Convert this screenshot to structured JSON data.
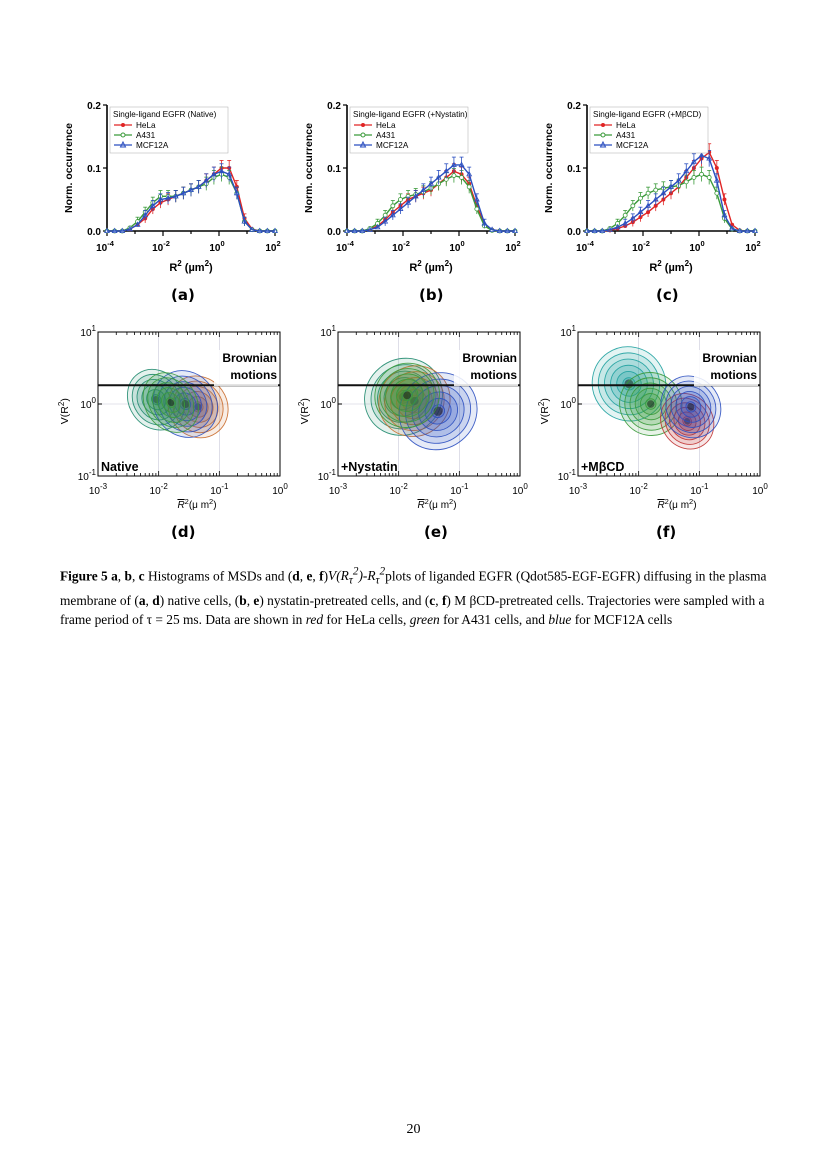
{
  "histograms": [
    {
      "id": "a",
      "sublabel": "(a)",
      "legend_title": "Single-ligand EGFR (Native)",
      "series": [
        {
          "name": "HeLa",
          "color": "#e02424",
          "marker": "circle",
          "values": [
            0,
            0,
            0,
            0.003,
            0.01,
            0.02,
            0.035,
            0.045,
            0.05,
            0.055,
            0.06,
            0.065,
            0.07,
            0.08,
            0.09,
            0.1,
            0.1,
            0.07,
            0.02,
            0.003,
            0,
            0,
            0
          ]
        },
        {
          "name": "A431",
          "color": "#3a9a3a",
          "marker": "circle-open",
          "values": [
            0,
            0,
            0,
            0.005,
            0.015,
            0.03,
            0.045,
            0.055,
            0.055,
            0.055,
            0.06,
            0.065,
            0.07,
            0.075,
            0.085,
            0.09,
            0.085,
            0.06,
            0.015,
            0.002,
            0,
            0,
            0
          ]
        },
        {
          "name": "MCF12A",
          "color": "#2b4fc0",
          "marker": "triangle-open",
          "values": [
            0,
            0,
            0,
            0.003,
            0.01,
            0.025,
            0.04,
            0.05,
            0.052,
            0.055,
            0.06,
            0.065,
            0.07,
            0.08,
            0.09,
            0.095,
            0.09,
            0.06,
            0.015,
            0.002,
            0,
            0,
            0
          ]
        }
      ]
    },
    {
      "id": "b",
      "sublabel": "(b)",
      "legend_title": "Single-ligand EGFR (+Nystatin)",
      "series": [
        {
          "name": "HeLa",
          "color": "#e02424",
          "marker": "circle",
          "values": [
            0,
            0,
            0,
            0.003,
            0.008,
            0.018,
            0.03,
            0.04,
            0.05,
            0.055,
            0.06,
            0.065,
            0.075,
            0.085,
            0.095,
            0.09,
            0.075,
            0.04,
            0.01,
            0.002,
            0,
            0,
            0
          ]
        },
        {
          "name": "A431",
          "color": "#3a9a3a",
          "marker": "circle-open",
          "values": [
            0,
            0,
            0,
            0.004,
            0.012,
            0.025,
            0.04,
            0.05,
            0.055,
            0.058,
            0.062,
            0.068,
            0.075,
            0.082,
            0.088,
            0.085,
            0.07,
            0.035,
            0.008,
            0.001,
            0,
            0,
            0
          ]
        },
        {
          "name": "MCF12A",
          "color": "#2b4fc0",
          "marker": "triangle-open",
          "values": [
            0,
            0,
            0,
            0.002,
            0.006,
            0.015,
            0.025,
            0.035,
            0.045,
            0.055,
            0.065,
            0.075,
            0.085,
            0.095,
            0.105,
            0.105,
            0.09,
            0.05,
            0.012,
            0.002,
            0,
            0,
            0
          ]
        }
      ]
    },
    {
      "id": "c",
      "sublabel": "(c)",
      "legend_title": "Single-ligand EGFR (+MβCD)",
      "series": [
        {
          "name": "HeLa",
          "color": "#e02424",
          "marker": "circle",
          "values": [
            0,
            0,
            0,
            0.001,
            0.004,
            0.008,
            0.014,
            0.022,
            0.03,
            0.04,
            0.05,
            0.06,
            0.07,
            0.085,
            0.1,
            0.115,
            0.125,
            0.1,
            0.05,
            0.01,
            0.001,
            0,
            0
          ]
        },
        {
          "name": "A431",
          "color": "#3a9a3a",
          "marker": "circle-open",
          "values": [
            0,
            0,
            0,
            0.004,
            0.012,
            0.025,
            0.04,
            0.052,
            0.06,
            0.065,
            0.068,
            0.07,
            0.072,
            0.078,
            0.085,
            0.09,
            0.085,
            0.06,
            0.02,
            0.003,
            0,
            0,
            0
          ]
        },
        {
          "name": "MCF12A",
          "color": "#2b4fc0",
          "marker": "triangle-open",
          "values": [
            0,
            0,
            0,
            0.002,
            0.006,
            0.012,
            0.02,
            0.03,
            0.04,
            0.05,
            0.06,
            0.07,
            0.08,
            0.095,
            0.11,
            0.12,
            0.115,
            0.08,
            0.025,
            0.004,
            0,
            0,
            0
          ]
        }
      ]
    }
  ],
  "histogram_axes": {
    "ylabel": "Norm. occurrence",
    "xlabel_base": "R",
    "xlabel_exp": "2",
    "xlabel_unit": "(µm",
    "xlabel_unit_exp": "2",
    "xlabel_close": ")",
    "yticks": [
      "0.0",
      "0.1",
      "0.2"
    ],
    "xtick_bases": [
      "10",
      "10",
      "10",
      "10"
    ],
    "xtick_exps": [
      "-4",
      "-2",
      "0",
      "2"
    ]
  },
  "contours": [
    {
      "id": "d",
      "sublabel": "(d)",
      "condition": "Native"
    },
    {
      "id": "e",
      "sublabel": "(e)",
      "condition": "+Nystatin"
    },
    {
      "id": "f",
      "sublabel": "(f)",
      "condition": "+MβCD"
    }
  ],
  "contour_axes": {
    "ylabel_base": "V(R",
    "ylabel_exp": "2",
    "ylabel_close": ")",
    "xlabel_sym": "R",
    "xlabel_exp": "2",
    "xlabel_unit": "(μ m",
    "xlabel_unit_exp": "2",
    "xlabel_close": ")",
    "brownian_line1": "Brownian",
    "brownian_line2": "motions",
    "ytick_bases": [
      "10",
      "10",
      "10"
    ],
    "ytick_exps": [
      "1",
      "0",
      "-1"
    ],
    "xtick_bases": [
      "10",
      "10",
      "10",
      "10"
    ],
    "xtick_exps": [
      "-3",
      "-2",
      "-1",
      "0"
    ]
  },
  "caption": {
    "figure_label": "Figure 5",
    "p1": " ",
    "a": "a",
    "p2": ", ",
    "b": "b",
    "p3": ", ",
    "c": "c",
    "p4": " Histograms of MSDs and (",
    "d": "d",
    "p5": ", ",
    "e": "e",
    "p6": ", ",
    "f": "f",
    "p7": ")",
    "formula": "V(R",
    "formula_sub": "τ",
    "formula_sup": "2",
    "formula_mid": ")-R",
    "formula_sub2": "τ",
    "formula_sup2": "2",
    "p8": "plots of liganded EGFR (Qdot585-EGF-EGFR) diffusing in the plasma membrane of (",
    "a2": "a",
    "p9": ", ",
    "d2": "d",
    "p10": ") native cells, (",
    "b2": "b",
    "p11": ", ",
    "e2": "e",
    "p12": ") nystatin-pretreated cells, and (",
    "c2": "c",
    "p13": ", ",
    "f2": "f",
    "p14": ") M βCD-pretreated cells. Trajectories were sampled with a frame period of τ = 25 ms. Data are shown in ",
    "red": "red",
    "p15": " for HeLa cells, ",
    "green": "green",
    "p16": " for A431 cells, and ",
    "blue": "blue",
    "p17": " for MCF12A cells"
  },
  "page_number": "20"
}
